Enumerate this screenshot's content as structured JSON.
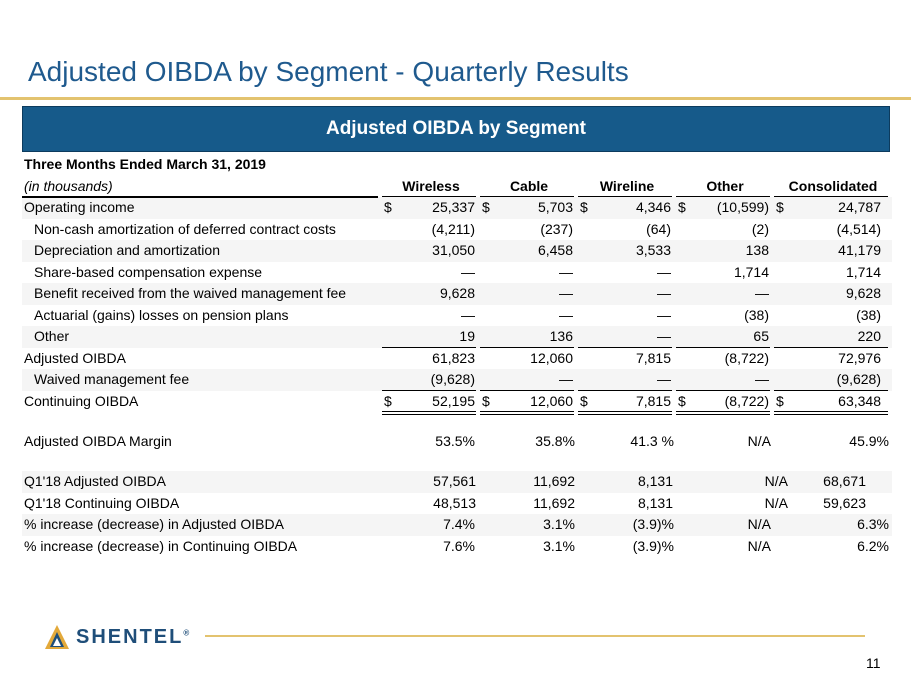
{
  "slide": {
    "title": "Adjusted OIBDA by Segment - Quarterly Results",
    "banner": "Adjusted OIBDA by Segment",
    "page_number": "11",
    "logo_text": "SHENTEL",
    "logo_mark": "®",
    "colors": {
      "title": "#1f5a8e",
      "banner": "#165a8a",
      "accent_rule": "#e3c36f"
    }
  },
  "table": {
    "period_label": "Three Months Ended March 31, 2019",
    "units_label": "(in thousands)",
    "columns": [
      "Wireless",
      "Cable",
      "Wireline",
      "Other",
      "Consolidated"
    ],
    "rows": [
      {
        "label": "Operating income",
        "values": [
          "25,337",
          "5,703",
          "4,346",
          "(10,599)",
          "24,787"
        ],
        "dollar": [
          "$",
          "$",
          "$",
          "$",
          "$"
        ]
      },
      {
        "label": "Non-cash amortization of deferred contract costs",
        "values": [
          "(4,211)",
          "(237)",
          "(64)",
          "(2)",
          "(4,514)"
        ]
      },
      {
        "label": "Depreciation and amortization",
        "values": [
          "31,050",
          "6,458",
          "3,533",
          "138",
          "41,179"
        ]
      },
      {
        "label": "Share-based compensation expense",
        "values": [
          "—",
          "—",
          "—",
          "1,714",
          "1,714"
        ]
      },
      {
        "label": "Benefit received from the waived management fee",
        "values": [
          "9,628",
          "—",
          "—",
          "—",
          "9,628"
        ]
      },
      {
        "label": "Actuarial (gains) losses on pension plans",
        "values": [
          "—",
          "—",
          "—",
          "(38)",
          "(38)"
        ]
      },
      {
        "label": "Other",
        "values": [
          "19",
          "136",
          "—",
          "65",
          "220"
        ]
      },
      {
        "label": "Adjusted OIBDA",
        "values": [
          "61,823",
          "12,060",
          "7,815",
          "(8,722)",
          "72,976"
        ]
      },
      {
        "label": "Waived management fee",
        "values": [
          "(9,628)",
          "—",
          "—",
          "—",
          "(9,628)"
        ]
      },
      {
        "label": "Continuing OIBDA",
        "values": [
          "52,195",
          "12,060",
          "7,815",
          "(8,722)",
          "63,348"
        ],
        "dollar": [
          "$",
          "$",
          "$",
          "$",
          "$"
        ]
      }
    ],
    "margin_row": {
      "label": "Adjusted OIBDA Margin",
      "values": [
        "53.5%",
        "35.8%",
        "41.3 %",
        "N/A",
        "45.9%"
      ]
    },
    "comparison_rows": [
      {
        "label": "Q1'18 Adjusted OIBDA",
        "values": [
          "57,561",
          "11,692",
          "8,131",
          "N/A",
          "68,671"
        ]
      },
      {
        "label": "Q1'18 Continuing OIBDA",
        "values": [
          "48,513",
          "11,692",
          "8,131",
          "N/A",
          "59,623"
        ]
      },
      {
        "label": "% increase (decrease) in Adjusted OIBDA",
        "values": [
          "7.4%",
          "3.1%",
          "(3.9)%",
          "N/A",
          "6.3%"
        ]
      },
      {
        "label": "% increase (decrease) in Continuing OIBDA",
        "values": [
          "7.6%",
          "3.1%",
          "(3.9)%",
          "N/A",
          "6.2%"
        ]
      }
    ]
  }
}
